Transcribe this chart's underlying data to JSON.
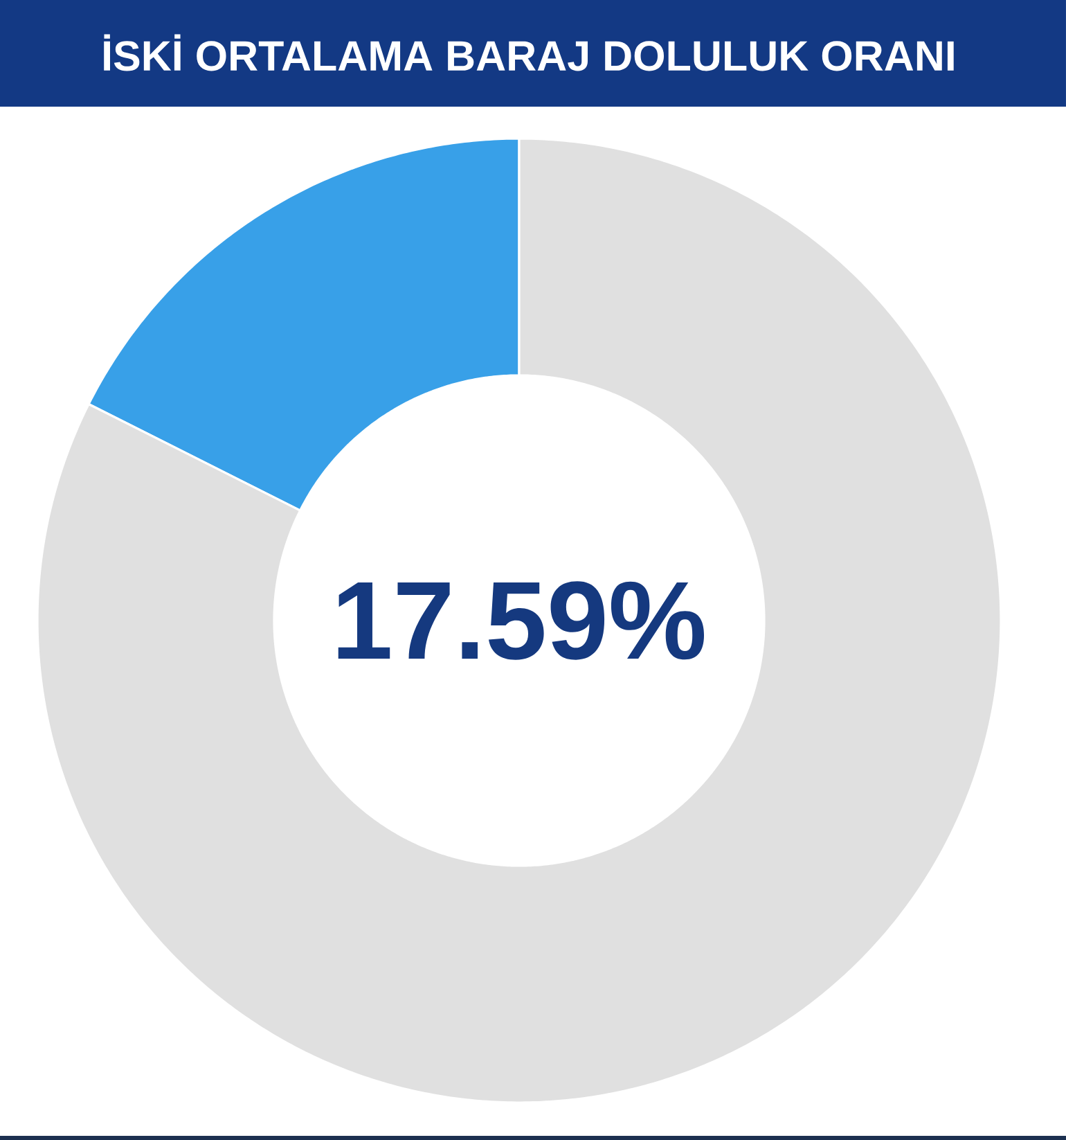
{
  "chart_data": {
    "type": "donut",
    "title": "İSKİ ORTALAMA BARAJ DOLULUK ORANI",
    "categories": [
      null,
      null
    ],
    "values": [
      17.59,
      82.41
    ],
    "colors": [
      "#38a0e8",
      "#e0e0e0"
    ],
    "annotations": [
      "17.59%"
    ]
  }
}
